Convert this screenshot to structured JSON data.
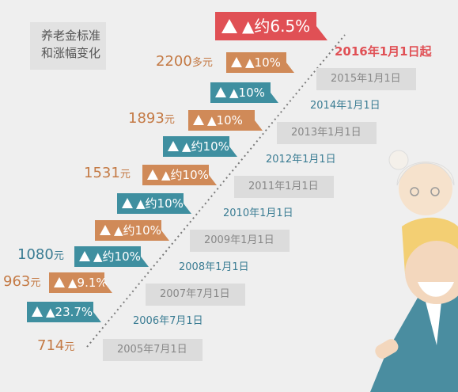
{
  "title_lines": [
    "养老金标准",
    "和涨幅变化"
  ],
  "start_label": "2016年1月1日起",
  "colors": {
    "orange": "#d08a58",
    "teal": "#3f8fa0",
    "red": "#e05055",
    "amount_orange": "#c47a45",
    "amount_teal": "#3a7c93"
  },
  "chart_data": {
    "type": "step",
    "title": "养老金标准和涨幅变化",
    "dates": [
      "2005年7月1日",
      "2006年7月1日",
      "2007年7月1日",
      "2008年1月1日",
      "2009年1月1日",
      "2010年1月1日",
      "2011年1月1日",
      "2012年1月1日",
      "2013年1月1日",
      "2014年1月1日",
      "2015年1月1日",
      "2016年1月1日"
    ],
    "increases": [
      "▲23.7%",
      "▲9.1%",
      "▲约10%",
      "▲约10%",
      "▲约10%",
      "▲约10%",
      "▲约10%",
      "▲10%",
      "▲10%",
      "▲10%",
      "▲约6.5%"
    ],
    "amounts": [
      {
        "value": "714",
        "unit": "元"
      },
      {
        "value": "963",
        "unit": "元"
      },
      {
        "value": "1080",
        "unit": "元"
      },
      {
        "value": "1531",
        "unit": "元"
      },
      {
        "value": "1893",
        "unit": "元"
      },
      {
        "value": "2200",
        "unit": "多元"
      }
    ]
  }
}
